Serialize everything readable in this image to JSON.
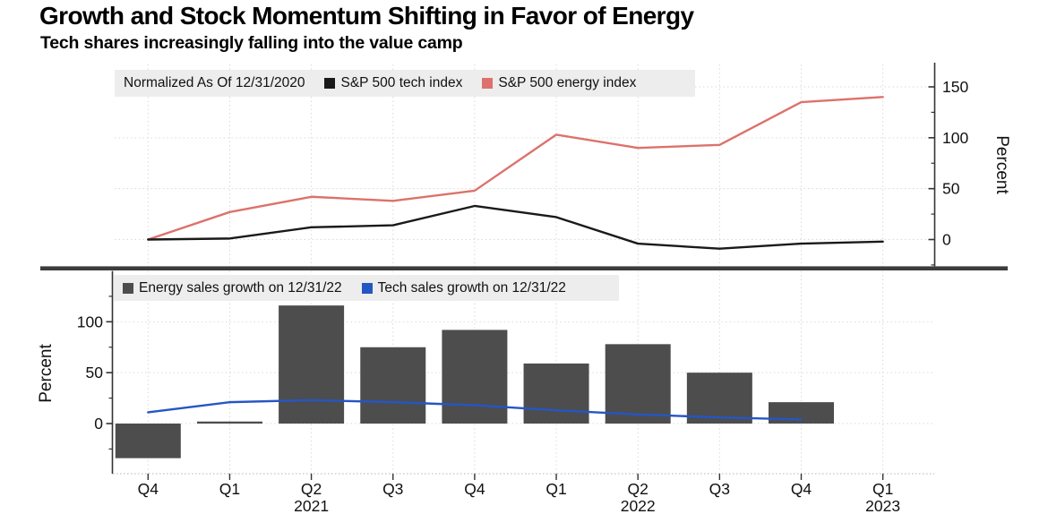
{
  "header": {
    "title": "Growth and Stock Momentum Shifting in Favor of Energy",
    "subtitle": "Tech shares increasingly falling into the value camp"
  },
  "chart_data": [
    {
      "type": "line",
      "panel": "top",
      "title": "Normalized As Of 12/31/2020",
      "x": [
        "Q4 2020",
        "Q1 2021",
        "Q2 2021",
        "Q3 2021",
        "Q4 2021",
        "Q1 2022",
        "Q2 2022",
        "Q3 2022",
        "Q4 2022",
        "Q1 2023"
      ],
      "series": [
        {
          "name": "S&P 500 tech index",
          "color": "#1a1a1a",
          "values": [
            0,
            1,
            12,
            14,
            33,
            22,
            -4,
            -9,
            -4,
            -2
          ]
        },
        {
          "name": "S&P 500 energy index",
          "color": "#dc726b",
          "values": [
            0,
            27,
            42,
            38,
            48,
            103,
            90,
            93,
            135,
            140
          ]
        }
      ],
      "ylabel": "Percent",
      "yticks": [
        0,
        50,
        100,
        150
      ],
      "yticks_minor": [
        -25,
        25,
        75,
        125
      ],
      "ylim": [
        -27,
        160
      ],
      "legend_position": "top",
      "grid": true
    },
    {
      "type": "bar",
      "panel": "bottom",
      "x": [
        "Q4 2020",
        "Q1 2021",
        "Q2 2021",
        "Q3 2021",
        "Q4 2021",
        "Q1 2022",
        "Q2 2022",
        "Q3 2022",
        "Q4 2022",
        "Q1 2023"
      ],
      "series": [
        {
          "name": "Energy sales growth on 12/31/22",
          "type": "bar",
          "color": "#4d4d4d",
          "values": [
            -34,
            2,
            116,
            75,
            92,
            59,
            78,
            50,
            21,
            null
          ]
        },
        {
          "name": "Tech sales growth on 12/31/22",
          "type": "line",
          "color": "#2456c4",
          "values": [
            11,
            21,
            23,
            21,
            18,
            13,
            9,
            6,
            4,
            null
          ]
        }
      ],
      "ylabel": "Percent",
      "yticks": [
        0,
        50,
        100
      ],
      "yticks_minor": [
        -25,
        25,
        75,
        125
      ],
      "ylim": [
        -50,
        128
      ],
      "xticklabels": [
        "Q4",
        "Q1",
        "Q2",
        "Q3",
        "Q4",
        "Q1",
        "Q2",
        "Q3",
        "Q4",
        "Q1"
      ],
      "year_labels": [
        {
          "text": "2021",
          "index": 2
        },
        {
          "text": "2022",
          "index": 6
        },
        {
          "text": "2023",
          "index": 9
        }
      ],
      "legend_position": "top",
      "grid": true
    }
  ]
}
